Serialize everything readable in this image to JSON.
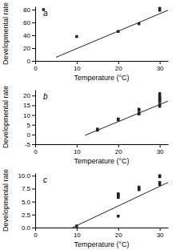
{
  "chart_data": [
    {
      "type": "scatter",
      "title": "a",
      "x_label": "Temperature (°C)",
      "y_label": "Developmental rate",
      "xlim": [
        0,
        32
      ],
      "ylim": [
        0,
        85
      ],
      "xticks": [
        0,
        10,
        20,
        30
      ],
      "yticks": [
        0,
        20,
        40,
        60,
        80
      ],
      "series": [
        {
          "type": "scatter",
          "marker": "square",
          "color": "#222222",
          "x": [
            2,
            10,
            20,
            25,
            30,
            30
          ],
          "values": [
            80,
            38,
            46,
            58,
            79,
            82
          ]
        },
        {
          "type": "line",
          "color": "#222222",
          "x": [
            5,
            32
          ],
          "values": [
            5.6,
            79.04
          ]
        }
      ]
    },
    {
      "type": "scatter",
      "title": "b",
      "x_label": "Temperature (°C)",
      "y_label": "Developmental rate",
      "xlim": [
        0,
        32
      ],
      "ylim": [
        -5,
        23
      ],
      "xticks": [
        0,
        10,
        20,
        30
      ],
      "yticks": [
        -5,
        0,
        5,
        10,
        15,
        20
      ],
      "series": [
        {
          "type": "scatter",
          "marker": "square",
          "color": "#222222",
          "x": [
            15,
            15,
            20,
            20,
            25,
            25,
            25,
            25,
            30,
            30,
            30,
            30,
            30,
            30,
            30,
            30
          ],
          "values": [
            2.2,
            2.8,
            7.5,
            8.0,
            10.5,
            11.0,
            12.5,
            13.0,
            14.5,
            15.5,
            17.0,
            17.8,
            18.5,
            19.0,
            19.8,
            21.0
          ]
        },
        {
          "type": "line",
          "color": "#222222",
          "x": [
            12,
            32
          ],
          "values": [
            -0.44,
            17.16
          ]
        }
      ]
    },
    {
      "type": "scatter",
      "title": "c",
      "x_label": "Temperature (°C)",
      "y_label": "Developmental rate",
      "xlim": [
        0,
        32
      ],
      "ylim": [
        0,
        10.5
      ],
      "xticks": [
        0,
        10,
        20,
        30
      ],
      "yticks": [
        {
          "value": 0,
          "label": "0.0"
        },
        2.5,
        {
          "value": 5,
          "label": "5.0"
        },
        7.5,
        {
          "value": 10,
          "label": "10.0"
        }
      ],
      "series": [
        {
          "type": "scatter",
          "marker": "square",
          "color": "#222222",
          "x": [
            10,
            20,
            20,
            20,
            20,
            20,
            25,
            25,
            25,
            30,
            30,
            30,
            30
          ],
          "values": [
            0.3,
            2.2,
            5.8,
            6.0,
            6.3,
            6.5,
            7.3,
            7.5,
            7.8,
            8.3,
            8.7,
            9.8,
            10.0
          ]
        },
        {
          "type": "line",
          "color": "#222222",
          "x": [
            9,
            32
          ],
          "values": [
            0.002,
            8.696
          ]
        }
      ]
    }
  ]
}
